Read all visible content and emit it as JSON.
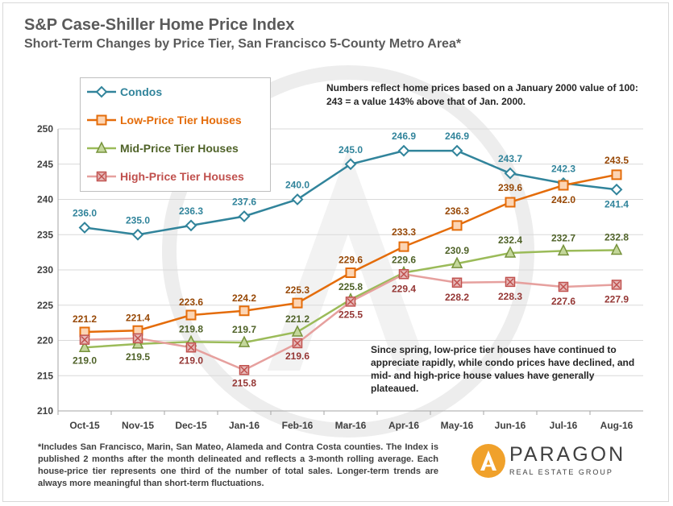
{
  "header": {
    "title": "S&P Case-Shiller Home Price Index",
    "subtitle": "Short-Term Changes by Price Tier, San Francisco 5-County Metro Area*"
  },
  "chart_data": {
    "type": "line",
    "title": "S&P Case-Shiller Home Price Index",
    "subtitle": "Short-Term Changes by Price Tier, San Francisco 5-County Metro Area*",
    "xlabel": "",
    "ylabel": "",
    "categories": [
      "Oct-15",
      "Nov-15",
      "Dec-15",
      "Jan-16",
      "Feb-16",
      "Mar-16",
      "Apr-16",
      "May-16",
      "Jun-16",
      "Jul-16",
      "Aug-16"
    ],
    "ylim": [
      210,
      250
    ],
    "yticks": [
      210,
      215,
      220,
      225,
      230,
      235,
      240,
      245,
      250
    ],
    "grid": true,
    "legend": "top-left",
    "series": [
      {
        "name": "Condos",
        "marker": "diamond",
        "color": "#31849b",
        "values": [
          236.0,
          235.0,
          236.3,
          237.6,
          240.0,
          245.0,
          246.9,
          246.9,
          243.7,
          242.3,
          241.4
        ],
        "labels": [
          "236.0",
          "235.0",
          "236.3",
          "237.6",
          "240.0",
          "245.0",
          "246.9",
          "246.9",
          "243.7",
          "242.3",
          "241.4"
        ]
      },
      {
        "name": "Low-Price Tier Houses",
        "marker": "square",
        "color": "#e46c0a",
        "values": [
          221.2,
          221.4,
          223.6,
          224.2,
          225.3,
          229.6,
          233.3,
          236.3,
          239.6,
          242.0,
          243.5
        ],
        "labels": [
          "221.2",
          "221.4",
          "223.6",
          "224.2",
          "225.3",
          "229.6",
          "233.3",
          "236.3",
          "239.6",
          "242.0",
          "243.5"
        ]
      },
      {
        "name": "Mid-Price Tier Houses",
        "marker": "triangle",
        "color": "#77933c",
        "values": [
          219.0,
          219.5,
          219.8,
          219.7,
          221.2,
          225.8,
          229.6,
          230.9,
          232.4,
          232.7,
          232.8
        ],
        "labels": [
          "219.0",
          "219.5",
          "219.8",
          "219.7",
          "221.2",
          "225.8",
          "229.6",
          "230.9",
          "232.4",
          "232.7",
          "232.8"
        ]
      },
      {
        "name": "High-Price Tier Houses",
        "marker": "x-square",
        "color": "#c0504d",
        "values": [
          220.1,
          220.3,
          219.0,
          215.8,
          219.6,
          225.5,
          229.4,
          228.2,
          228.3,
          227.6,
          227.9
        ],
        "labels": [
          "",
          "",
          "219.0",
          "215.8",
          "219.6",
          "225.5",
          "229.4",
          "228.2",
          "228.3",
          "227.6",
          "227.9"
        ]
      }
    ]
  },
  "notes": {
    "top": "Numbers reflect home prices based on a January 2000 value of 100: 243 = a value 143% above that of Jan. 2000.",
    "middle": "Since spring, low-price tier houses have continued to appreciate rapidly, while condo prices have declined, and mid- and high-price house values have generally plateaued."
  },
  "footnote": "*Includes San Francisco, Marin, San Mateo, Alameda and Contra Costa counties. The Index is published 2 months after the month delineated and reflects a 3-month rolling average. Each house-price tier represents one third of the number of total sales. Longer-term trends are always more meaningful than short-term fluctuations.",
  "logo": {
    "name": "PARAGON",
    "sub": "REAL ESTATE GROUP",
    "icon": "paragon-a-logo-icon",
    "color": "#f0a12b"
  },
  "colors": {
    "title": "#5a5a5a",
    "grid": "#d9d9d9",
    "axis": "#a6a6a6"
  }
}
